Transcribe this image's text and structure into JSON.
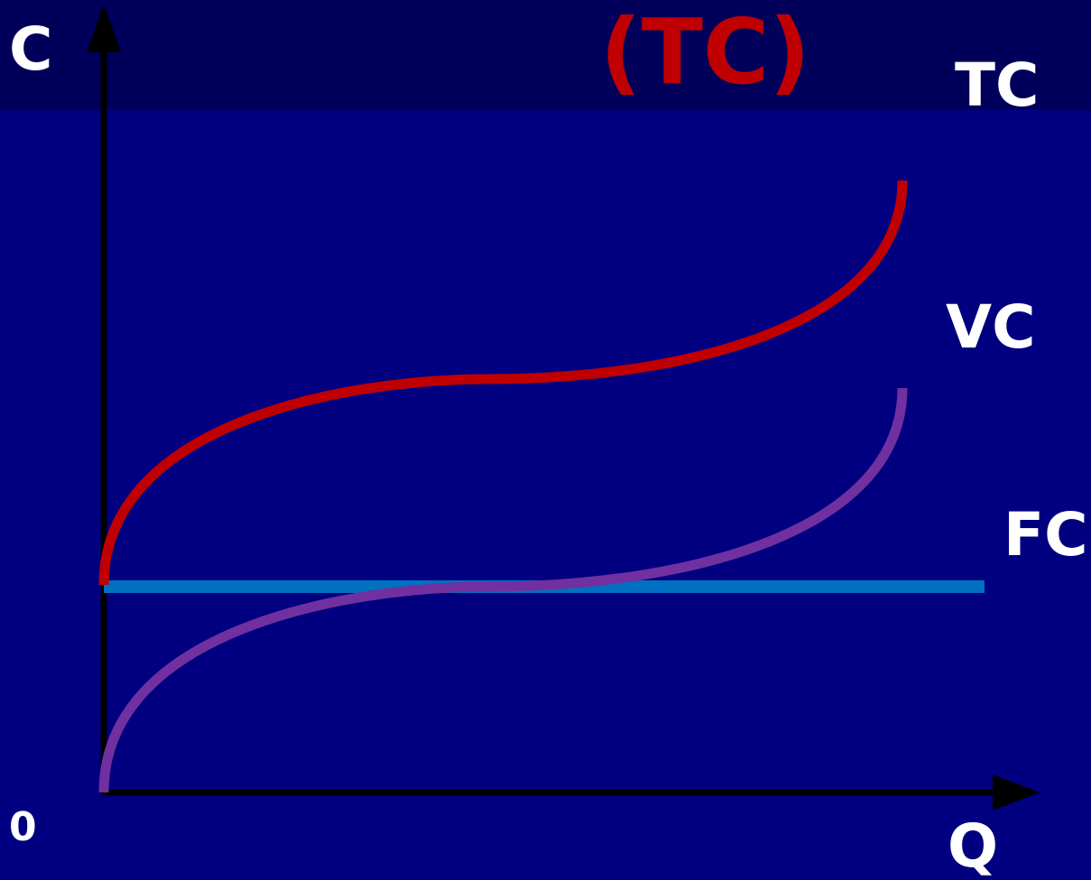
{
  "title": "(TC)",
  "y_axis_label": "C",
  "x_axis_label": "Q",
  "origin_label": "0",
  "curves": [
    {
      "label": "TC",
      "color": "#c00000"
    },
    {
      "label": "VC",
      "color": "#7030a0"
    },
    {
      "label": "FC",
      "color": "#0070c0"
    }
  ],
  "colors": {
    "background_header": "#00005a",
    "background_main": "#000080",
    "axis": "#000000",
    "label_text": "#ffffff",
    "title_text": "#c00000"
  }
}
